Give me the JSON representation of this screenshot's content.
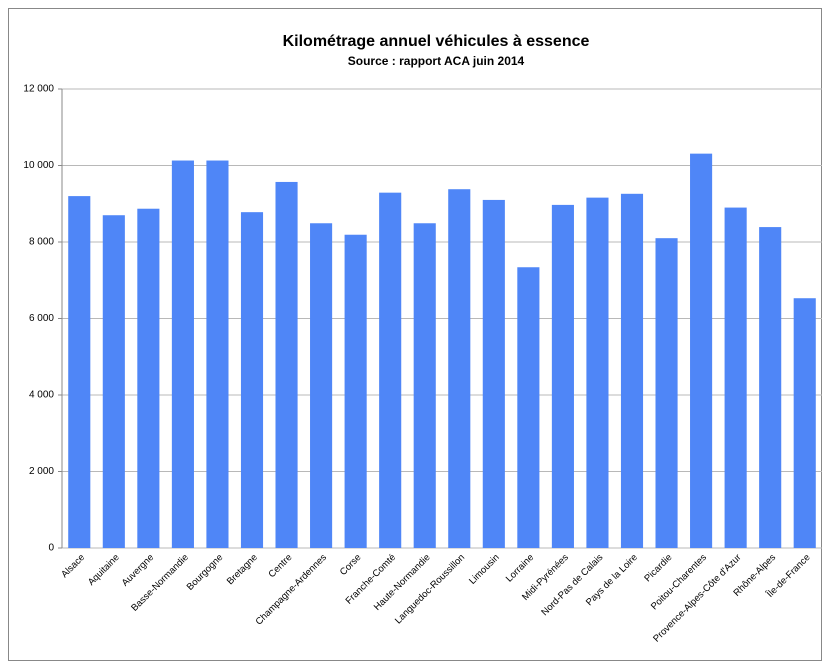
{
  "chart_data": {
    "type": "bar",
    "title": "Kilométrage annuel véhicules à essence",
    "subtitle": "Source : rapport ACA juin 2014",
    "categories": [
      "Alsace",
      "Aquitaine",
      "Auvergne",
      "Basse-Normandie",
      "Bourgogne",
      "Bretagne",
      "Centre",
      "Champagne-Ardennes",
      "Corse",
      "Franche-Comté",
      "Haute-Normandie",
      "Languedoc-Roussillon",
      "Limousin",
      "Lorraine",
      "Midi-Pyrénées",
      "Nord-Pas de Calais",
      "Pays de la Loire",
      "Picardie",
      "Poitou-Charentes",
      "Provence-Alpes-Côte d'Azur",
      "Rhône-Alpes",
      "Île-de-France"
    ],
    "values": [
      9200,
      8700,
      8870,
      10130,
      10130,
      8780,
      9570,
      8490,
      8190,
      9290,
      8490,
      9380,
      9100,
      7340,
      8970,
      9160,
      9260,
      8100,
      10310,
      8900,
      8390,
      6530
    ],
    "color": "#4f86f7",
    "ylim": [
      0,
      12000
    ],
    "yticks": [
      0,
      {
        "value": 2000,
        "label": "2 000"
      },
      {
        "value": 4000,
        "label": "4 000"
      },
      {
        "value": 6000,
        "label": "6 000"
      },
      {
        "value": 8000,
        "label": "8 000"
      },
      {
        "value": 10000,
        "label": "10 000"
      },
      {
        "value": 12000,
        "label": "12 000"
      }
    ],
    "grid": true
  }
}
